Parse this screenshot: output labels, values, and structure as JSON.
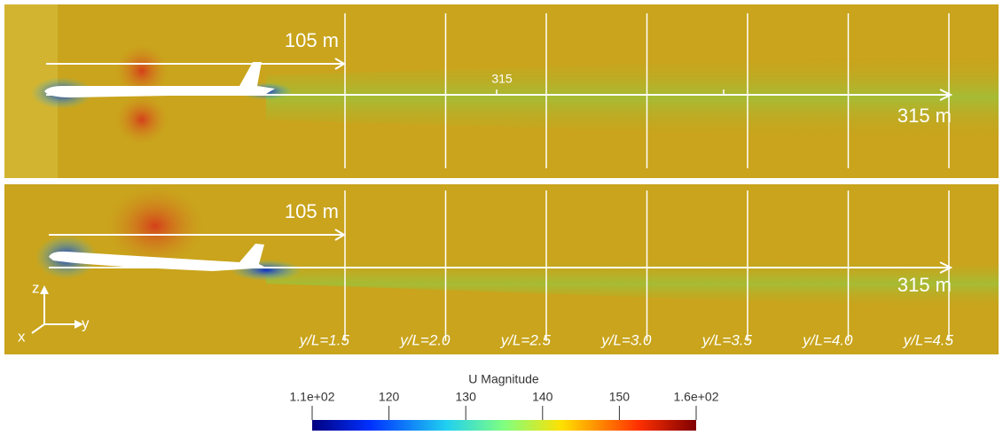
{
  "panels": [
    {
      "distance_labels": [
        "105 m",
        "315 m"
      ],
      "marker_label": "315"
    },
    {
      "distance_labels": [
        "105 m",
        "315 m"
      ],
      "axes": [
        "z",
        "y",
        "x"
      ]
    }
  ],
  "stations": [
    "y/L=1.5",
    "y/L=2.0",
    "y/L=2.5",
    "y/L=3.0",
    "y/L=3.5",
    "y/L=4.0",
    "y/L=4.5"
  ],
  "colorbar": {
    "title": "U Magnitude",
    "lim": [
      110,
      160
    ],
    "ticks": [
      {
        "value": 110,
        "label": "1.1e+02"
      },
      120,
      130,
      140,
      150,
      {
        "value": 160,
        "label": "1.6e+02"
      }
    ]
  }
}
